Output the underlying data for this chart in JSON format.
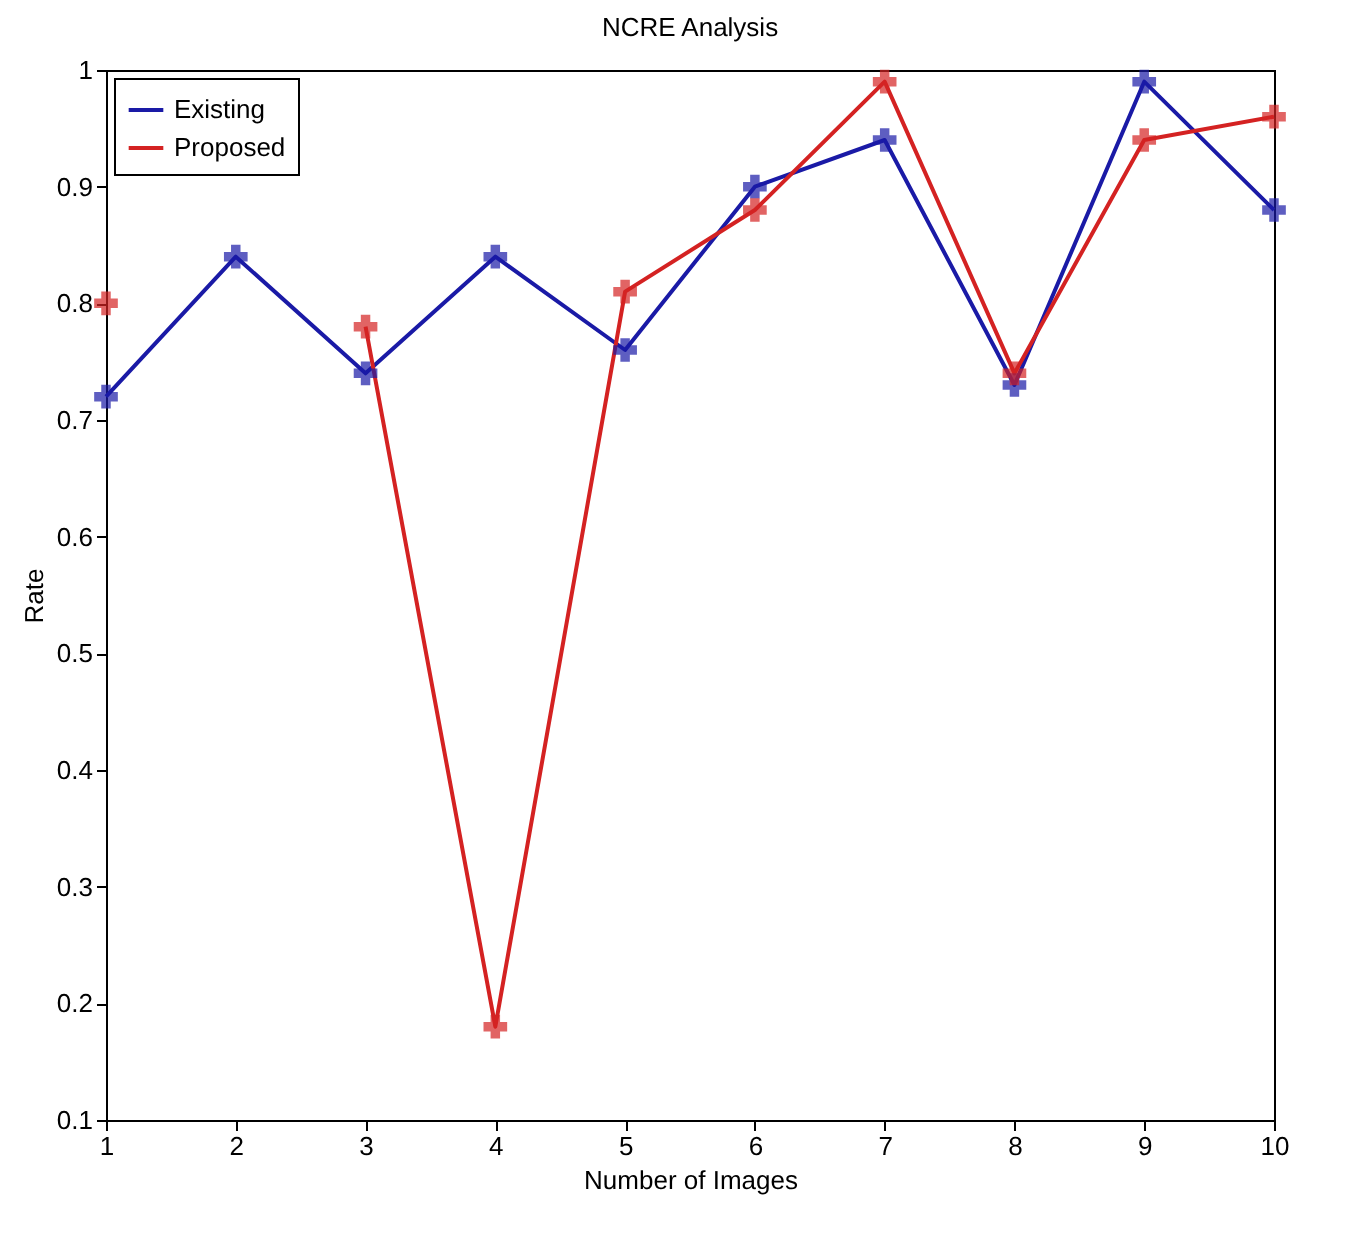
{
  "chart_data": {
    "type": "line",
    "title": "NCRE Analysis",
    "xlabel": "Number of Images",
    "ylabel": "Rate",
    "x": [
      1,
      2,
      3,
      4,
      5,
      6,
      7,
      8,
      9,
      10
    ],
    "series": [
      {
        "name": "Existing",
        "color": "#1a1aa6",
        "values": [
          0.72,
          0.84,
          0.74,
          0.84,
          0.76,
          0.9,
          0.94,
          0.73,
          0.99,
          0.88
        ]
      },
      {
        "name": "Proposed",
        "color": "#d42222",
        "values": [
          0.8,
          null,
          0.78,
          0.18,
          0.81,
          0.88,
          0.99,
          0.74,
          0.94,
          0.96
        ]
      }
    ],
    "xlim": [
      1,
      10
    ],
    "xticks": [
      1,
      2,
      3,
      4,
      5,
      6,
      7,
      8,
      9,
      10
    ],
    "ylim": [
      0.1,
      1
    ],
    "yticks": [
      0.1,
      0.2,
      0.3,
      0.4,
      0.5,
      0.6,
      0.7,
      0.8,
      0.9,
      1
    ],
    "legend": "top left",
    "marker": "cross",
    "grid": false,
    "line_style": "solid"
  }
}
